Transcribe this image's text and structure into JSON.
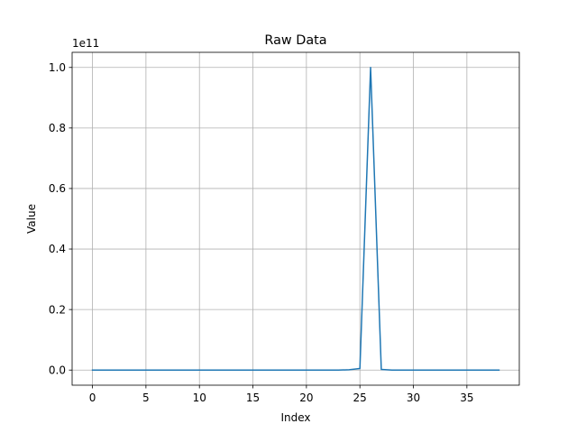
{
  "chart_data": {
    "type": "line",
    "title": "Raw Data",
    "xlabel": "Index",
    "ylabel": "Value",
    "y_offset_label": "1e11",
    "xlim": [
      -1.9,
      39.9
    ],
    "ylim": [
      -0.05,
      1.05
    ],
    "y_scale_factor": 100000000000,
    "grid": true,
    "x_ticks": [
      0,
      5,
      10,
      15,
      20,
      25,
      30,
      35
    ],
    "x_tick_labels": [
      "0",
      "5",
      "10",
      "15",
      "20",
      "25",
      "30",
      "35"
    ],
    "y_ticks": [
      0.0,
      0.2,
      0.4,
      0.6,
      0.8,
      1.0
    ],
    "y_tick_labels": [
      "0.0",
      "0.2",
      "0.4",
      "0.6",
      "0.8",
      "1.0"
    ],
    "series": [
      {
        "color": "#1f77b4",
        "x": [
          0,
          1,
          2,
          3,
          4,
          5,
          6,
          7,
          8,
          9,
          10,
          11,
          12,
          13,
          14,
          15,
          16,
          17,
          18,
          19,
          20,
          21,
          22,
          23,
          24,
          25,
          26,
          27,
          28,
          29,
          30,
          31,
          32,
          33,
          34,
          35,
          36,
          37,
          38
        ],
        "y": [
          0,
          0,
          0,
          0,
          0,
          0,
          0,
          0,
          0,
          0,
          0,
          0,
          0,
          0,
          0,
          0,
          0,
          0,
          0,
          0,
          0,
          0,
          0,
          0,
          0.001,
          0.005,
          1.0,
          0.002,
          0,
          0,
          0,
          0,
          0,
          0,
          0,
          0,
          0,
          0,
          0
        ]
      }
    ]
  }
}
